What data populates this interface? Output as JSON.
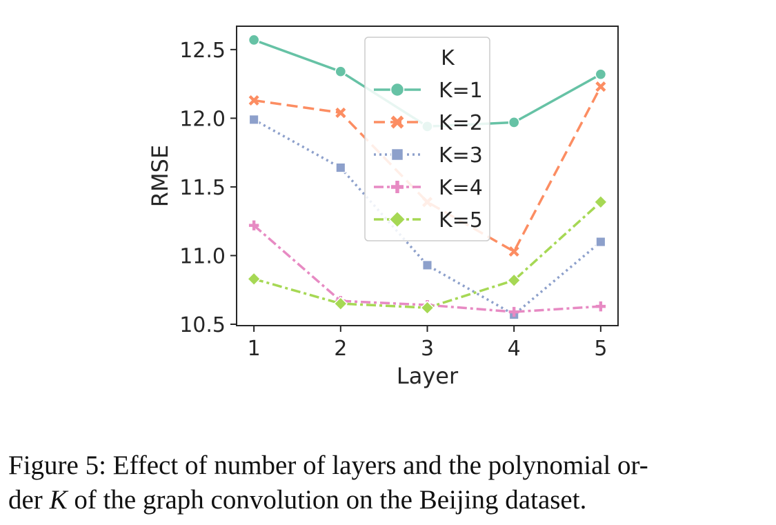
{
  "chart_data": {
    "type": "line",
    "title": "",
    "xlabel": "Layer",
    "ylabel": "RMSE",
    "x": [
      1,
      2,
      3,
      4,
      5
    ],
    "xticks": [
      "1",
      "2",
      "3",
      "4",
      "5"
    ],
    "xlim": [
      0.8,
      5.2
    ],
    "yticks": [
      "10.5",
      "11.0",
      "11.5",
      "12.0",
      "12.5"
    ],
    "ylim": [
      10.49,
      12.67
    ],
    "legend": {
      "title": "K",
      "placement": "top-center"
    },
    "series": [
      {
        "name": "K=1",
        "values": [
          12.57,
          12.34,
          11.94,
          11.97,
          12.32
        ],
        "color": "#66c2a5",
        "marker": "circle",
        "dash": "solid"
      },
      {
        "name": "K=2",
        "values": [
          12.13,
          12.04,
          11.39,
          11.03,
          12.23
        ],
        "color": "#fc8d62",
        "marker": "x",
        "dash": "dashed"
      },
      {
        "name": "K=3",
        "values": [
          11.99,
          11.64,
          10.93,
          10.57,
          11.1
        ],
        "color": "#8da0cb",
        "marker": "square",
        "dash": "dotted"
      },
      {
        "name": "K=4",
        "values": [
          11.22,
          10.67,
          10.64,
          10.59,
          10.63
        ],
        "color": "#e78ac3",
        "marker": "plus",
        "dash": "dashdot"
      },
      {
        "name": "K=5",
        "values": [
          10.83,
          10.65,
          10.62,
          10.82,
          11.39
        ],
        "color": "#a6d854",
        "marker": "diamond",
        "dash": "dashdot"
      }
    ]
  },
  "caption": {
    "line1": "Figure 5: Effect of number of layers and the polynomial or-",
    "line2_prefix": "der ",
    "line2_var": "K",
    "line2_suffix": " of the graph convolution on the Beijing dataset."
  }
}
